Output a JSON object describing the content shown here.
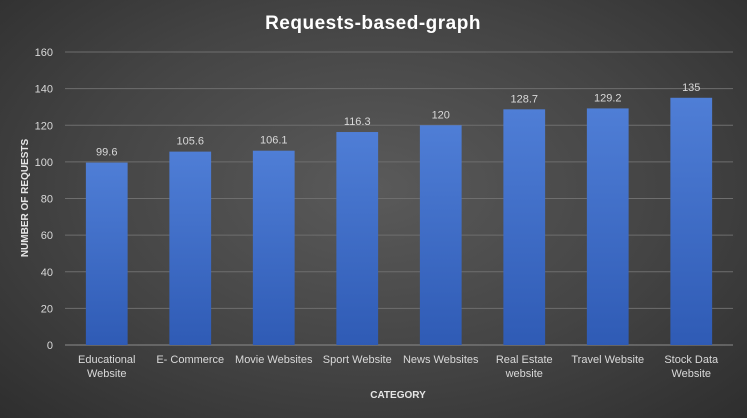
{
  "chart_data": {
    "type": "bar",
    "title": "Requests-based-graph",
    "xlabel": "CATEGORY",
    "ylabel": "NUMBER OF REQUESTS",
    "ylim": [
      0,
      160
    ],
    "yticks": [
      0,
      20,
      40,
      60,
      80,
      100,
      120,
      140,
      160
    ],
    "grid": true,
    "categories": [
      [
        "Educational",
        "Website"
      ],
      [
        "E- Commerce"
      ],
      [
        "Movie Websites"
      ],
      [
        "Sport Website"
      ],
      [
        "News Websites"
      ],
      [
        "Real Estate",
        "website"
      ],
      [
        "Travel Website"
      ],
      [
        "Stock Data",
        "Website"
      ]
    ],
    "values": [
      99.6,
      105.6,
      106.1,
      116.3,
      120,
      128.7,
      129.2,
      135
    ],
    "data_labels": [
      "99.6",
      "105.6",
      "106.1",
      "116.3",
      "120",
      "128.7",
      "129.2",
      "135"
    ],
    "colors": {
      "bar_top": "#4f7ed6",
      "bar_bottom": "#2f5bb5"
    }
  }
}
